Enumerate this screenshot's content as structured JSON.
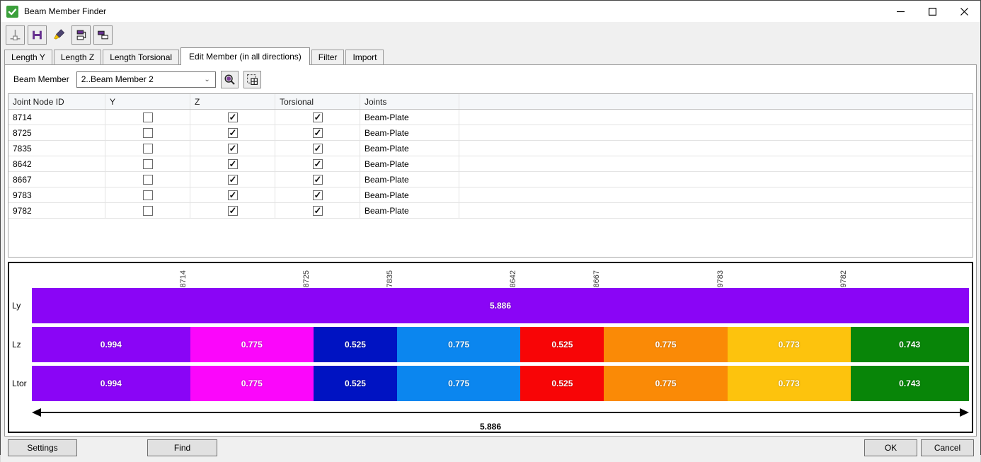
{
  "window": {
    "title": "Beam Member Finder"
  },
  "icons": {
    "app": "green-check-icon",
    "titlebar": [
      "minimize-icon",
      "maximize-icon",
      "close-icon"
    ],
    "toolbar": [
      "node-tool-icon",
      "i-beam-tool-icon",
      "brush-tool-icon",
      "copy-stack-tool-icon",
      "copy-overlap-tool-icon"
    ],
    "member_row": [
      "search-icon",
      "select-table-icon"
    ],
    "combobox": "chevron-down-icon"
  },
  "tabs": [
    {
      "label": "Length Y",
      "active": false
    },
    {
      "label": "Length Z",
      "active": false
    },
    {
      "label": "Length Torsional",
      "active": false
    },
    {
      "label": "Edit Member (in all directions)",
      "active": true
    },
    {
      "label": "Filter",
      "active": false
    },
    {
      "label": "Import",
      "active": false
    }
  ],
  "member": {
    "label": "Beam Member",
    "value": "2..Beam Member 2"
  },
  "table": {
    "columns": [
      "Joint Node ID",
      "Y",
      "Z",
      "Torsional",
      "Joints"
    ],
    "rows": [
      {
        "id": "8714",
        "y": false,
        "z": true,
        "torsional": true,
        "joints": "Beam-Plate"
      },
      {
        "id": "8725",
        "y": false,
        "z": true,
        "torsional": true,
        "joints": "Beam-Plate"
      },
      {
        "id": "7835",
        "y": false,
        "z": true,
        "torsional": true,
        "joints": "Beam-Plate"
      },
      {
        "id": "8642",
        "y": false,
        "z": true,
        "torsional": true,
        "joints": "Beam-Plate"
      },
      {
        "id": "8667",
        "y": false,
        "z": true,
        "torsional": true,
        "joints": "Beam-Plate"
      },
      {
        "id": "9783",
        "y": false,
        "z": true,
        "torsional": true,
        "joints": "Beam-Plate"
      },
      {
        "id": "9782",
        "y": false,
        "z": true,
        "torsional": true,
        "joints": "Beam-Plate"
      }
    ]
  },
  "chart_data": {
    "type": "stacked-bar",
    "orientation": "horizontal",
    "total": 5.886,
    "total_label": "5.886",
    "joint_boundaries": [
      {
        "label": "8714",
        "position_pct": 16.89
      },
      {
        "label": "8725",
        "position_pct": 30.06
      },
      {
        "label": "7835",
        "position_pct": 38.97
      },
      {
        "label": "8642",
        "position_pct": 52.14
      },
      {
        "label": "8667",
        "position_pct": 61.06
      },
      {
        "label": "9783",
        "position_pct": 74.23
      },
      {
        "label": "9782",
        "position_pct": 87.36
      }
    ],
    "rows": [
      {
        "label": "Ly",
        "segments": [
          {
            "length": 5.886,
            "value_label": "5.886",
            "color": "#8A05F6"
          }
        ]
      },
      {
        "label": "Lz",
        "segments": [
          {
            "length": 0.994,
            "value_label": "0.994",
            "color": "#8A05F6"
          },
          {
            "length": 0.775,
            "value_label": "0.775",
            "color": "#FB06FB"
          },
          {
            "length": 0.525,
            "value_label": "0.525",
            "color": "#0013C2"
          },
          {
            "length": 0.775,
            "value_label": "0.775",
            "color": "#0B86EF"
          },
          {
            "length": 0.525,
            "value_label": "0.525",
            "color": "#F80506"
          },
          {
            "length": 0.775,
            "value_label": "0.775",
            "color": "#FA8A06"
          },
          {
            "length": 0.773,
            "value_label": "0.773",
            "color": "#FDC30D"
          },
          {
            "length": 0.743,
            "value_label": "0.743",
            "color": "#088508"
          }
        ]
      },
      {
        "label": "Ltor",
        "segments": [
          {
            "length": 0.994,
            "value_label": "0.994",
            "color": "#8A05F6"
          },
          {
            "length": 0.775,
            "value_label": "0.775",
            "color": "#FB06FB"
          },
          {
            "length": 0.525,
            "value_label": "0.525",
            "color": "#0013C2"
          },
          {
            "length": 0.775,
            "value_label": "0.775",
            "color": "#0B86EF"
          },
          {
            "length": 0.525,
            "value_label": "0.525",
            "color": "#F80506"
          },
          {
            "length": 0.775,
            "value_label": "0.775",
            "color": "#FA8A06"
          },
          {
            "length": 0.773,
            "value_label": "0.773",
            "color": "#FDC30D"
          },
          {
            "length": 0.743,
            "value_label": "0.743",
            "color": "#088508"
          }
        ]
      }
    ]
  },
  "footer": {
    "settings": "Settings",
    "find": "Find",
    "ok": "OK",
    "cancel": "Cancel"
  }
}
